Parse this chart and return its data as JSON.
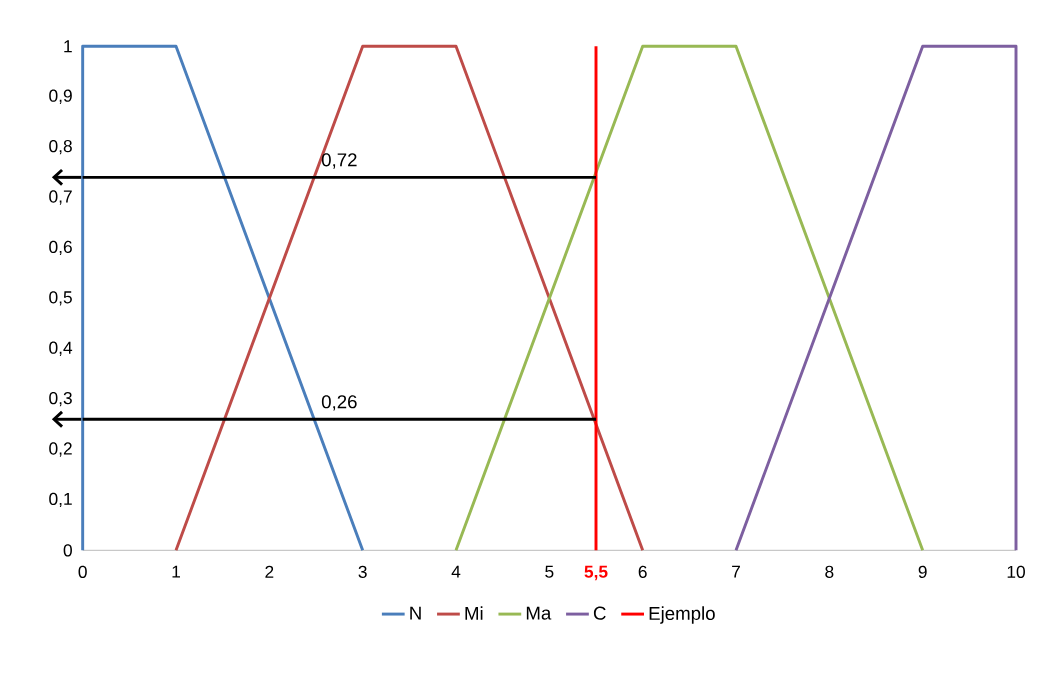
{
  "chart_data": {
    "type": "line",
    "series": [
      {
        "name": "N",
        "color": "#4a7ebb",
        "x": [
          0,
          0,
          1,
          3
        ],
        "values": [
          0,
          1,
          1,
          0
        ]
      },
      {
        "name": "Mi",
        "color": "#be4b48",
        "x": [
          1,
          3,
          4,
          6
        ],
        "values": [
          0,
          1,
          1,
          0
        ]
      },
      {
        "name": "Ma",
        "color": "#98b954",
        "x": [
          4,
          6,
          7,
          9
        ],
        "values": [
          0,
          1,
          1,
          0
        ]
      },
      {
        "name": "C",
        "color": "#7d5fa0",
        "x": [
          7,
          9,
          10,
          10
        ],
        "values": [
          0,
          1,
          1,
          0
        ]
      },
      {
        "name": "Ejemplo",
        "color": "#ff0000",
        "x": [
          5.5,
          5.5
        ],
        "values": [
          0,
          1
        ]
      },
      {
        "color": "#000000",
        "x": [
          5.5,
          0
        ],
        "values": [
          0.74,
          0.74
        ]
      },
      {
        "color": "#000000",
        "x": [
          5.5,
          0
        ],
        "values": [
          0.26,
          0.26
        ]
      }
    ],
    "xlim": [
      0,
      10
    ],
    "xticks": [
      0,
      1,
      2,
      3,
      4,
      5,
      {
        "value": 5.5,
        "label": "5,5"
      },
      6,
      7,
      8,
      9,
      10
    ],
    "ylim": [
      0,
      1
    ],
    "yticks": [
      0,
      {
        "value": 0.1,
        "label": "0,1"
      },
      {
        "value": 0.2,
        "label": "0,2"
      },
      {
        "value": 0.3,
        "label": "0,3"
      },
      {
        "value": 0.4,
        "label": "0,4"
      },
      {
        "value": 0.5,
        "label": "0,5"
      },
      {
        "value": 0.6,
        "label": "0,6"
      },
      {
        "value": 0.7,
        "label": "0,7"
      },
      {
        "value": 0.8,
        "label": "0,8"
      },
      {
        "value": 0.9,
        "label": "0,9"
      },
      1
    ],
    "annotations": [
      "0,72",
      "0,26"
    ],
    "grid": false,
    "legend": "bottom",
    "marker": "none",
    "line_style": "solid"
  }
}
